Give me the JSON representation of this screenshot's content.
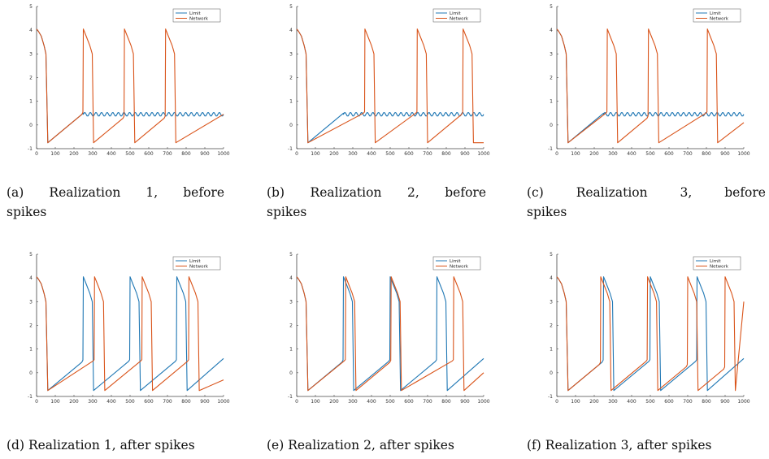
{
  "colors": {
    "limit": "#1f77b4",
    "network": "#d95319",
    "axis": "#444444"
  },
  "chart_data": [
    {
      "type": "line",
      "caption_label": "(a)",
      "caption_parts": [
        "Realization",
        "1,",
        "before"
      ],
      "caption_line2": "spikes",
      "xlim": [
        0,
        1000
      ],
      "ylim": [
        -1,
        5
      ],
      "xticks": [
        "0",
        "100",
        "200",
        "300",
        "400",
        "500",
        "600",
        "700",
        "800",
        "900",
        "1000"
      ],
      "yticks": [
        "-1",
        "0",
        "1",
        "2",
        "3",
        "4",
        "5"
      ],
      "legend": [
        "Limit",
        "Network"
      ],
      "legend_position": "top-right",
      "series": [
        {
          "name": "Limit",
          "kind": "osc",
          "spikes": [],
          "start_osc": 250,
          "end_x": 1000
        },
        {
          "name": "Network",
          "kind": "spikes",
          "spikes": [
            250,
            470,
            690
          ],
          "tail_x": 1000,
          "tail_y": 0.45
        }
      ]
    },
    {
      "type": "line",
      "caption_label": "(b)",
      "caption_parts": [
        "Realization",
        "2,",
        "before"
      ],
      "caption_line2": "spikes",
      "xlim": [
        0,
        1000
      ],
      "ylim": [
        -1,
        5
      ],
      "xticks": [
        "0",
        "100",
        "200",
        "300",
        "400",
        "500",
        "600",
        "700",
        "800",
        "900",
        "1000"
      ],
      "yticks": [
        "-1",
        "0",
        "1",
        "2",
        "3",
        "4",
        "5"
      ],
      "legend": [
        "Limit",
        "Network"
      ],
      "legend_position": "top-right",
      "series": [
        {
          "name": "Limit",
          "kind": "osc",
          "spikes": [],
          "start_osc": 250,
          "end_x": 1000
        },
        {
          "name": "Network",
          "kind": "spikes",
          "spikes": [
            365,
            645,
            890
          ],
          "tail_x": 1000,
          "tail_y": -0.75
        }
      ]
    },
    {
      "type": "line",
      "caption_label": "(c)",
      "caption_parts": [
        "Realization",
        "3,",
        "before"
      ],
      "caption_line2": "spikes",
      "xlim": [
        0,
        1000
      ],
      "ylim": [
        -1,
        5
      ],
      "xticks": [
        "0",
        "100",
        "200",
        "300",
        "400",
        "500",
        "600",
        "700",
        "800",
        "900",
        "1000"
      ],
      "yticks": [
        "-1",
        "0",
        "1",
        "2",
        "3",
        "4",
        "5"
      ],
      "legend": [
        "Limit",
        "Network"
      ],
      "legend_position": "top-right",
      "series": [
        {
          "name": "Limit",
          "kind": "osc",
          "spikes": [],
          "start_osc": 250,
          "end_x": 1000
        },
        {
          "name": "Network",
          "kind": "spikes",
          "spikes": [
            270,
            490,
            805
          ],
          "tail_x": 1000,
          "tail_y": 0.1
        }
      ]
    },
    {
      "type": "line",
      "caption_label": "(d)",
      "caption_parts": [
        "Realization",
        "1,",
        "after",
        "spikes"
      ],
      "caption_line2": "",
      "xlim": [
        0,
        1000
      ],
      "ylim": [
        -1,
        5
      ],
      "xticks": [
        "0",
        "100",
        "200",
        "300",
        "400",
        "500",
        "600",
        "700",
        "800",
        "900",
        "1000"
      ],
      "yticks": [
        "-1",
        "0",
        "1",
        "2",
        "3",
        "4",
        "5"
      ],
      "legend": [
        "Limit",
        "Network"
      ],
      "legend_position": "top-right",
      "series": [
        {
          "name": "Limit",
          "kind": "spikes",
          "spikes": [
            250,
            500,
            750
          ],
          "tail_x": 1000,
          "tail_y": 0.6
        },
        {
          "name": "Network",
          "kind": "spikes",
          "spikes": [
            310,
            565,
            815
          ],
          "tail_x": 1000,
          "tail_y": -0.3
        }
      ]
    },
    {
      "type": "line",
      "caption_label": "(e)",
      "caption_parts": [
        "Realization",
        "2,",
        "after",
        "spikes"
      ],
      "caption_line2": "",
      "xlim": [
        0,
        1000
      ],
      "ylim": [
        -1,
        5
      ],
      "xticks": [
        "0",
        "100",
        "200",
        "300",
        "400",
        "500",
        "600",
        "700",
        "800",
        "900",
        "1000"
      ],
      "yticks": [
        "-1",
        "0",
        "1",
        "2",
        "3",
        "4",
        "5"
      ],
      "legend": [
        "Limit",
        "Network"
      ],
      "legend_position": "top-right",
      "series": [
        {
          "name": "Limit",
          "kind": "spikes",
          "spikes": [
            250,
            500,
            750
          ],
          "tail_x": 1000,
          "tail_y": 0.6
        },
        {
          "name": "Network",
          "kind": "spikes",
          "spikes": [
            262,
            505,
            840
          ],
          "tail_x": 1000,
          "tail_y": 0.0
        }
      ]
    },
    {
      "type": "line",
      "caption_label": "(f)",
      "caption_parts": [
        "Realization",
        "3,",
        "after",
        "spikes"
      ],
      "caption_line2": "",
      "xlim": [
        0,
        1000
      ],
      "ylim": [
        -1,
        5
      ],
      "xticks": [
        "0",
        "100",
        "200",
        "300",
        "400",
        "500",
        "600",
        "700",
        "800",
        "900",
        "1000"
      ],
      "yticks": [
        "-1",
        "0",
        "1",
        "2",
        "3",
        "4",
        "5"
      ],
      "legend": [
        "Limit",
        "Network"
      ],
      "legend_position": "top-right",
      "series": [
        {
          "name": "Limit",
          "kind": "spikes",
          "spikes": [
            250,
            500,
            750
          ],
          "tail_x": 1000,
          "tail_y": 0.6
        },
        {
          "name": "Network",
          "kind": "spikes",
          "spikes": [
            235,
            485,
            700,
            900
          ],
          "tail_x": 1000,
          "tail_y": 3.0
        }
      ]
    }
  ]
}
